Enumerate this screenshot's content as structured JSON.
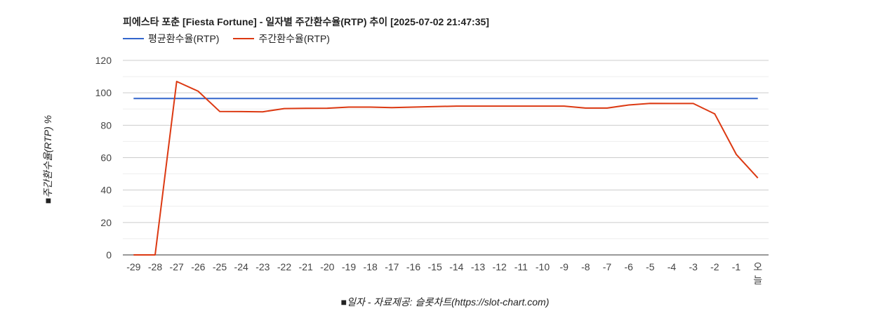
{
  "chart_data": {
    "type": "line",
    "title": "피에스타 포춘 [Fiesta Fortune] - 일자별 주간환수율(RTP) 추이 [2025-07-02 21:47:35]",
    "ylabel": "■주간환수율(RTP) %",
    "xlabel": "■일자 - 자료제공: 슬롯차트(https://slot-chart.com)",
    "categories": [
      "-29",
      "-28",
      "-27",
      "-26",
      "-25",
      "-24",
      "-23",
      "-22",
      "-21",
      "-20",
      "-19",
      "-18",
      "-17",
      "-16",
      "-15",
      "-14",
      "-13",
      "-12",
      "-11",
      "-10",
      "-9",
      "-8",
      "-7",
      "-6",
      "-5",
      "-4",
      "-3",
      "-2",
      "-1",
      "오늘"
    ],
    "ylim": [
      0,
      120
    ],
    "yticks": [
      0,
      20,
      40,
      60,
      80,
      100,
      120
    ],
    "grid": true,
    "legend_position": "top-left",
    "series": [
      {
        "name": "평균환수율(RTP)",
        "color": "#3366cc",
        "values": [
          96.5,
          96.5,
          96.5,
          96.5,
          96.5,
          96.5,
          96.5,
          96.5,
          96.5,
          96.5,
          96.5,
          96.5,
          96.5,
          96.5,
          96.5,
          96.5,
          96.5,
          96.5,
          96.5,
          96.5,
          96.5,
          96.5,
          96.5,
          96.5,
          96.5,
          96.5,
          96.5,
          96.5,
          96.5,
          96.5
        ]
      },
      {
        "name": "주간환수율(RTP)",
        "color": "#dc3912",
        "values": [
          0,
          0,
          107,
          101,
          88.5,
          88.4,
          88.3,
          90.3,
          90.4,
          90.5,
          91.2,
          91.2,
          90.9,
          91.2,
          91.5,
          91.8,
          91.8,
          91.8,
          91.8,
          91.8,
          91.8,
          90.6,
          90.6,
          92.5,
          93.5,
          93.4,
          93.4,
          87,
          62,
          47.5
        ]
      }
    ]
  }
}
